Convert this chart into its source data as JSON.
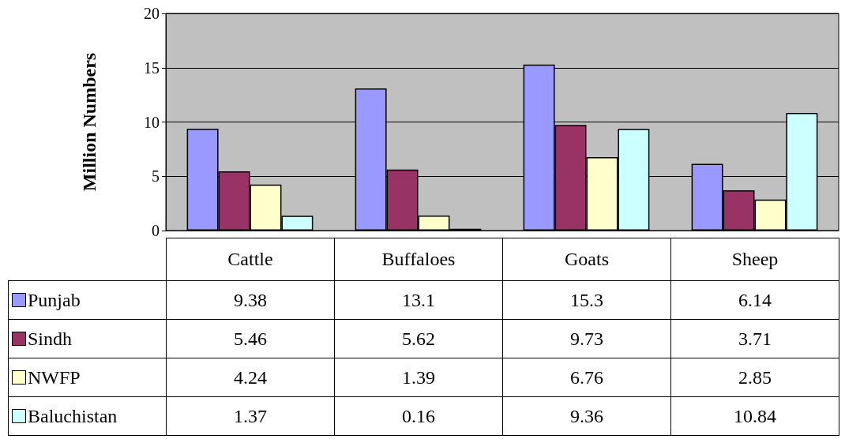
{
  "chart_data": {
    "type": "bar",
    "ylabel": "Million Numbers",
    "categories": [
      "Cattle",
      "Buffaloes",
      "Goats",
      "Sheep"
    ],
    "series": [
      {
        "name": "Punjab",
        "color": "#9999ff",
        "values": [
          9.38,
          13.1,
          15.3,
          6.14
        ]
      },
      {
        "name": "Sindh",
        "color": "#993366",
        "values": [
          5.46,
          5.62,
          9.73,
          3.71
        ]
      },
      {
        "name": "NWFP",
        "color": "#ffffcc",
        "values": [
          4.24,
          1.39,
          6.76,
          2.85
        ]
      },
      {
        "name": "Baluchistan",
        "color": "#ccffff",
        "values": [
          1.37,
          0.16,
          9.36,
          10.84
        ]
      }
    ],
    "ylim": [
      0,
      20
    ],
    "yticks": [
      0,
      5,
      10,
      15,
      20
    ],
    "grid": "y",
    "legend": "bottom left",
    "data_labels": true
  }
}
